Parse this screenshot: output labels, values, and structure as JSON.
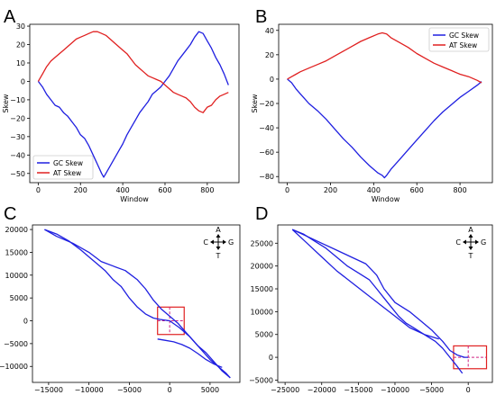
{
  "figure": {
    "panels": [
      {
        "letter": "A",
        "type": "line",
        "xlabel": "Window",
        "ylabel": "Skew",
        "xlim": [
          -40,
          950
        ],
        "ylim": [
          -55,
          31
        ],
        "xticks": [
          0,
          200,
          400,
          600,
          800
        ],
        "yticks": [
          -50,
          -40,
          -30,
          -20,
          -10,
          0,
          10,
          20,
          30
        ],
        "legend_position": "lower-left",
        "series": [
          {
            "name": "GC Skew",
            "color": "#1f1fe0",
            "x": [
              0,
              20,
              40,
              60,
              80,
              100,
              120,
              140,
              160,
              180,
              200,
              220,
              240,
              260,
              280,
              300,
              310,
              320,
              340,
              360,
              380,
              400,
              420,
              440,
              460,
              480,
              500,
              520,
              540,
              560,
              580,
              600,
              620,
              640,
              660,
              680,
              700,
              720,
              740,
              760,
              780,
              800,
              820,
              840,
              860,
              880,
              900
            ],
            "y": [
              0,
              -3,
              -7,
              -10,
              -13,
              -14,
              -17,
              -19,
              -22,
              -25,
              -29,
              -31,
              -35,
              -40,
              -45,
              -50,
              -52,
              -50,
              -46,
              -42,
              -38,
              -34,
              -29,
              -25,
              -21,
              -17,
              -14,
              -11,
              -7,
              -5,
              -3,
              0,
              3,
              7,
              11,
              14,
              17,
              20,
              24,
              27,
              26,
              22,
              18,
              13,
              9,
              4,
              -2
            ]
          },
          {
            "name": "AT Skew",
            "color": "#e02020",
            "x": [
              0,
              20,
              40,
              60,
              80,
              100,
              120,
              140,
              160,
              180,
              200,
              220,
              240,
              260,
              280,
              300,
              320,
              340,
              360,
              380,
              400,
              420,
              440,
              460,
              480,
              500,
              520,
              540,
              560,
              580,
              600,
              620,
              640,
              660,
              680,
              700,
              720,
              740,
              760,
              780,
              800,
              820,
              840,
              860,
              880,
              900
            ],
            "y": [
              0,
              4,
              8,
              11,
              13,
              15,
              17,
              19,
              21,
              23,
              24,
              25,
              26,
              27,
              27,
              26,
              25,
              23,
              21,
              19,
              17,
              15,
              12,
              9,
              7,
              5,
              3,
              2,
              1,
              0,
              -2,
              -4,
              -6,
              -7,
              -8,
              -9,
              -11,
              -14,
              -16,
              -17,
              -14,
              -13,
              -10,
              -8,
              -7,
              -6
            ]
          }
        ]
      },
      {
        "letter": "B",
        "type": "line",
        "xlabel": "Window",
        "ylabel": "Skew",
        "xlim": [
          -40,
          950
        ],
        "ylim": [
          -85,
          45
        ],
        "xticks": [
          0,
          200,
          400,
          600,
          800
        ],
        "yticks": [
          -80,
          -60,
          -40,
          -20,
          0,
          20,
          40
        ],
        "legend_position": "top-right",
        "series": [
          {
            "name": "GC Skew",
            "color": "#1f1fe0",
            "x": [
              0,
              20,
              40,
              60,
              80,
              100,
              140,
              180,
              220,
              260,
              300,
              340,
              380,
              420,
              440,
              450,
              460,
              480,
              520,
              560,
              600,
              640,
              680,
              720,
              760,
              800,
              840,
              880,
              900
            ],
            "y": [
              0,
              -3,
              -8,
              -12,
              -16,
              -20,
              -26,
              -33,
              -41,
              -49,
              -56,
              -64,
              -71,
              -77,
              -79,
              -81,
              -79,
              -74,
              -66,
              -58,
              -50,
              -42,
              -34,
              -27,
              -21,
              -15,
              -10,
              -5,
              -2
            ]
          },
          {
            "name": "AT Skew",
            "color": "#e02020",
            "x": [
              0,
              20,
              40,
              60,
              100,
              140,
              180,
              220,
              260,
              300,
              340,
              380,
              420,
              440,
              460,
              480,
              520,
              560,
              600,
              640,
              680,
              720,
              760,
              800,
              840,
              880,
              900
            ],
            "y": [
              0,
              2,
              4,
              6,
              9,
              12,
              15,
              19,
              23,
              27,
              31,
              34,
              37,
              38,
              37,
              34,
              30,
              26,
              21,
              17,
              13,
              10,
              7,
              4,
              2,
              -1,
              -3
            ]
          }
        ]
      },
      {
        "letter": "C",
        "type": "line",
        "xlim": [
          -17000,
          8700
        ],
        "ylim": [
          -13500,
          21000
        ],
        "xticks": [
          -15000,
          -10000,
          -5000,
          0,
          5000
        ],
        "yticks": [
          -10000,
          -5000,
          0,
          5000,
          10000,
          15000,
          20000
        ],
        "compass": {
          "up": "A",
          "down": "T",
          "left": "C",
          "right": "G"
        },
        "highlight_box": {
          "x": [
            -1500,
            1800
          ],
          "y": [
            -3000,
            3000
          ]
        },
        "series": [
          {
            "name": "",
            "color": "#1f1fe0",
            "x": [
              -15500,
              -14000,
              -12500,
              -11000,
              -10000,
              -9000,
              -8000,
              -7000,
              -6000,
              -5000,
              -4000,
              -3000,
              -2000,
              -1200,
              0,
              1200,
              2500,
              3500,
              4500,
              5500,
              6500,
              7500
            ],
            "y": [
              20000,
              19000,
              17500,
              15500,
              14000,
              12500,
              11000,
              9000,
              7500,
              5000,
              3000,
              1500,
              600,
              300,
              0,
              -1500,
              -3500,
              -5500,
              -7000,
              -9000,
              -11000,
              -12500
            ]
          },
          {
            "name": "",
            "color": "#1f1fe0",
            "x": [
              -15500,
              -14000,
              -12000,
              -10000,
              -8500,
              -7000,
              -5500,
              -4000,
              -3000,
              -2000,
              -1000,
              0,
              1000,
              2000,
              3000,
              4000,
              5000,
              6000,
              7000,
              7500
            ],
            "y": [
              20000,
              18500,
              17000,
              15000,
              13000,
              12000,
              11000,
              9000,
              7000,
              4500,
              2500,
              1000,
              -500,
              -2500,
              -4500,
              -6500,
              -8500,
              -10000,
              -11500,
              -12500
            ]
          },
          {
            "name": "",
            "color": "#1f1fe0",
            "x": [
              -1500,
              -500,
              500,
              1500,
              2500,
              3500,
              4500,
              5500,
              6500
            ],
            "y": [
              -4000,
              -4300,
              -4600,
              -5200,
              -6000,
              -7200,
              -8500,
              -9500,
              -10200
            ]
          }
        ]
      },
      {
        "letter": "D",
        "type": "line",
        "xlim": [
          -26000,
          3300
        ],
        "ylim": [
          -5500,
          29000
        ],
        "xticks": [
          -25000,
          -20000,
          -15000,
          -10000,
          -5000,
          0
        ],
        "yticks": [
          -5000,
          0,
          5000,
          10000,
          15000,
          20000,
          25000
        ],
        "compass": {
          "up": "A",
          "down": "T",
          "left": "C",
          "right": "G"
        },
        "highlight_box": {
          "x": [
            -2000,
            2500
          ],
          "y": [
            -2500,
            2500
          ]
        },
        "series": [
          {
            "name": "",
            "color": "#1f1fe0",
            "x": [
              -24000,
              -22500,
              -21000,
              -19500,
              -18000,
              -16500,
              -15000,
              -13500,
              -12500,
              -11500,
              -10500,
              -9500,
              -8500,
              -7500,
              -6500,
              -5500,
              -4500,
              -3500,
              -2500,
              -1500,
              -800
            ],
            "y": [
              28000,
              27000,
              25500,
              24000,
              22000,
              20000,
              18500,
              17000,
              15000,
              13000,
              11000,
              9000,
              7500,
              6500,
              5500,
              4500,
              3500,
              2000,
              0,
              -2000,
              -3500
            ]
          },
          {
            "name": "",
            "color": "#1f1fe0",
            "x": [
              -24000,
              -22000,
              -20000,
              -18000,
              -16000,
              -14000,
              -12500,
              -11500,
              -10000,
              -8000,
              -6500,
              -5000,
              -3500,
              -2500,
              -1500,
              -500,
              0
            ],
            "y": [
              28000,
              26500,
              25000,
              23500,
              22000,
              20500,
              18000,
              15000,
              12000,
              10000,
              8000,
              6000,
              3500,
              1500,
              500,
              0,
              0
            ]
          },
          {
            "name": "",
            "color": "#1f1fe0",
            "x": [
              -24000,
              -22000,
              -20000,
              -18000,
              -16000,
              -14000,
              -12000,
              -10000,
              -8000,
              -6000,
              -4000
            ],
            "y": [
              28000,
              25000,
              22000,
              19000,
              16500,
              14000,
              11500,
              9000,
              6500,
              5000,
              4000
            ]
          }
        ]
      }
    ]
  }
}
